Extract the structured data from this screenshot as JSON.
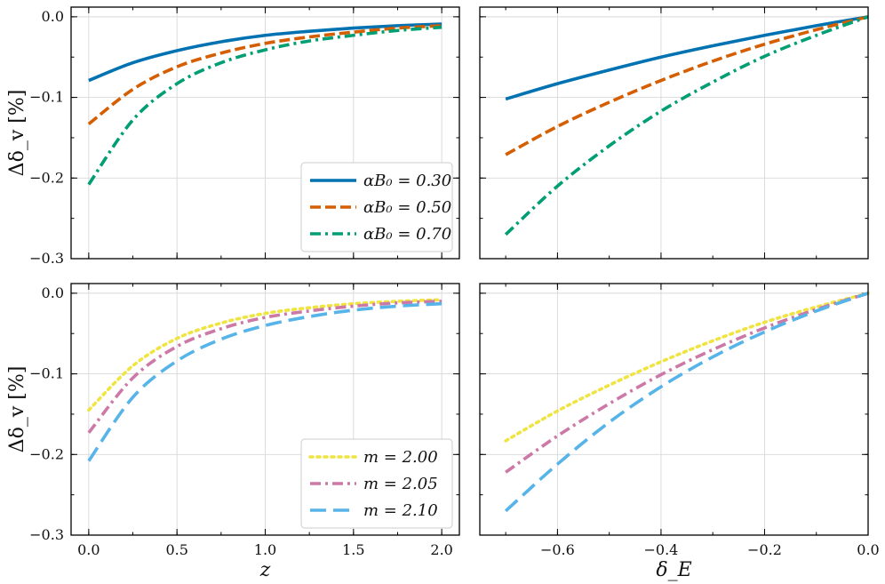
{
  "colors": {
    "blue": "#0072B2",
    "orange": "#D55E00",
    "green": "#009E73",
    "yellow": "#F0E442",
    "pink": "#CC79A7",
    "sky": "#56B4E9"
  },
  "chart_data": [
    {
      "id": "top-left",
      "type": "line",
      "xlabel": "",
      "ylabel": "Δδ_v [%]",
      "xlim": [
        -0.1,
        2.1
      ],
      "ylim": [
        -0.3,
        0.012
      ],
      "x_ticks": [
        0.0,
        0.5,
        1.0,
        1.5,
        2.0
      ],
      "x_tick_labels": [
        "",
        "",
        "",
        "",
        ""
      ],
      "y_ticks": [
        0.0,
        -0.1,
        -0.2,
        -0.3
      ],
      "y_tick_labels": [
        "0.0",
        "−0.1",
        "−0.2",
        "−0.3"
      ],
      "grid": true,
      "legend": "lower-right",
      "x": [
        0.0,
        0.25,
        0.5,
        0.75,
        1.0,
        1.25,
        1.5,
        1.75,
        2.0
      ],
      "series": [
        {
          "name": "α_B0 = 0.30",
          "legend_label": "αB₀ = 0.30",
          "color": "#0072B2",
          "dash": "solid",
          "values": [
            -0.079,
            -0.057,
            -0.042,
            -0.031,
            -0.023,
            -0.018,
            -0.014,
            -0.011,
            -0.009
          ]
        },
        {
          "name": "α_B0 = 0.50",
          "legend_label": "αB₀ = 0.50",
          "color": "#D55E00",
          "dash": "dashed",
          "values": [
            -0.133,
            -0.09,
            -0.062,
            -0.045,
            -0.033,
            -0.025,
            -0.019,
            -0.014,
            -0.011
          ]
        },
        {
          "name": "α_B0 = 0.70",
          "legend_label": "αB₀ = 0.70",
          "color": "#009E73",
          "dash": "dashdot",
          "values": [
            -0.208,
            -0.128,
            -0.083,
            -0.057,
            -0.041,
            -0.03,
            -0.023,
            -0.017,
            -0.013
          ]
        }
      ]
    },
    {
      "id": "top-right",
      "type": "line",
      "xlabel": "",
      "ylabel": "",
      "xlim": [
        -0.75,
        0.0
      ],
      "ylim": [
        -0.3,
        0.012
      ],
      "x_ticks": [
        -0.6,
        -0.4,
        -0.2,
        0.0
      ],
      "x_tick_labels": [
        "",
        "",
        "",
        ""
      ],
      "y_ticks": [
        0.0,
        -0.1,
        -0.2,
        -0.3
      ],
      "y_tick_labels": [
        "",
        "",
        "",
        ""
      ],
      "grid": true,
      "legend": "none",
      "x": [
        -0.7,
        -0.6,
        -0.5,
        -0.4,
        -0.3,
        -0.2,
        -0.1,
        0.0
      ],
      "series": [
        {
          "name": "α_B0 = 0.30",
          "color": "#0072B2",
          "dash": "solid",
          "values": [
            -0.102,
            -0.083,
            -0.066,
            -0.05,
            -0.036,
            -0.023,
            -0.011,
            0.0
          ]
        },
        {
          "name": "α_B0 = 0.50",
          "color": "#D55E00",
          "dash": "dashed",
          "values": [
            -0.171,
            -0.136,
            -0.106,
            -0.079,
            -0.055,
            -0.034,
            -0.016,
            0.0
          ]
        },
        {
          "name": "α_B0 = 0.70",
          "color": "#009E73",
          "dash": "dashdot",
          "values": [
            -0.27,
            -0.21,
            -0.16,
            -0.117,
            -0.081,
            -0.049,
            -0.023,
            0.0
          ]
        }
      ]
    },
    {
      "id": "bottom-left",
      "type": "line",
      "xlabel": "z",
      "ylabel": "Δδ_v [%]",
      "xlim": [
        -0.1,
        2.1
      ],
      "ylim": [
        -0.3,
        0.012
      ],
      "x_ticks": [
        0.0,
        0.5,
        1.0,
        1.5,
        2.0
      ],
      "x_tick_labels": [
        "0.0",
        "0.5",
        "1.0",
        "1.5",
        "2.0"
      ],
      "y_ticks": [
        0.0,
        -0.1,
        -0.2,
        -0.3
      ],
      "y_tick_labels": [
        "0.0",
        "−0.1",
        "−0.2",
        "−0.3"
      ],
      "grid": true,
      "legend": "lower-right",
      "x": [
        0.0,
        0.25,
        0.5,
        0.75,
        1.0,
        1.25,
        1.5,
        1.75,
        2.0
      ],
      "series": [
        {
          "name": "m = 2.00",
          "legend_label": "m = 2.00",
          "color": "#F0E442",
          "dash": "dotted",
          "values": [
            -0.145,
            -0.09,
            -0.056,
            -0.037,
            -0.025,
            -0.018,
            -0.013,
            -0.01,
            -0.008
          ]
        },
        {
          "name": "m = 2.05",
          "legend_label": "m = 2.05",
          "color": "#CC79A7",
          "dash": "dashdot",
          "values": [
            -0.173,
            -0.105,
            -0.066,
            -0.044,
            -0.03,
            -0.022,
            -0.016,
            -0.012,
            -0.01
          ]
        },
        {
          "name": "m = 2.10",
          "legend_label": "m = 2.10",
          "color": "#56B4E9",
          "dash": "longdash",
          "values": [
            -0.208,
            -0.129,
            -0.084,
            -0.057,
            -0.04,
            -0.029,
            -0.021,
            -0.016,
            -0.013
          ]
        }
      ]
    },
    {
      "id": "bottom-right",
      "type": "line",
      "xlabel": "δ_E",
      "ylabel": "",
      "xlim": [
        -0.75,
        0.0
      ],
      "ylim": [
        -0.3,
        0.012
      ],
      "x_ticks": [
        -0.6,
        -0.4,
        -0.2,
        0.0
      ],
      "x_tick_labels": [
        "−0.6",
        "−0.4",
        "−0.2",
        "0.0"
      ],
      "y_ticks": [
        0.0,
        -0.1,
        -0.2,
        -0.3
      ],
      "y_tick_labels": [
        "",
        "",
        "",
        ""
      ],
      "grid": true,
      "legend": "none",
      "x": [
        -0.7,
        -0.6,
        -0.5,
        -0.4,
        -0.3,
        -0.2,
        -0.1,
        0.0
      ],
      "series": [
        {
          "name": "m = 2.00",
          "color": "#F0E442",
          "dash": "dotted",
          "values": [
            -0.183,
            -0.146,
            -0.114,
            -0.085,
            -0.059,
            -0.036,
            -0.017,
            0.0
          ]
        },
        {
          "name": "m = 2.05",
          "color": "#CC79A7",
          "dash": "dashdot",
          "values": [
            -0.222,
            -0.177,
            -0.137,
            -0.101,
            -0.07,
            -0.043,
            -0.02,
            0.0
          ]
        },
        {
          "name": "m = 2.10",
          "color": "#56B4E9",
          "dash": "longdash",
          "values": [
            -0.27,
            -0.212,
            -0.16,
            -0.116,
            -0.079,
            -0.048,
            -0.022,
            0.0
          ]
        }
      ]
    }
  ]
}
